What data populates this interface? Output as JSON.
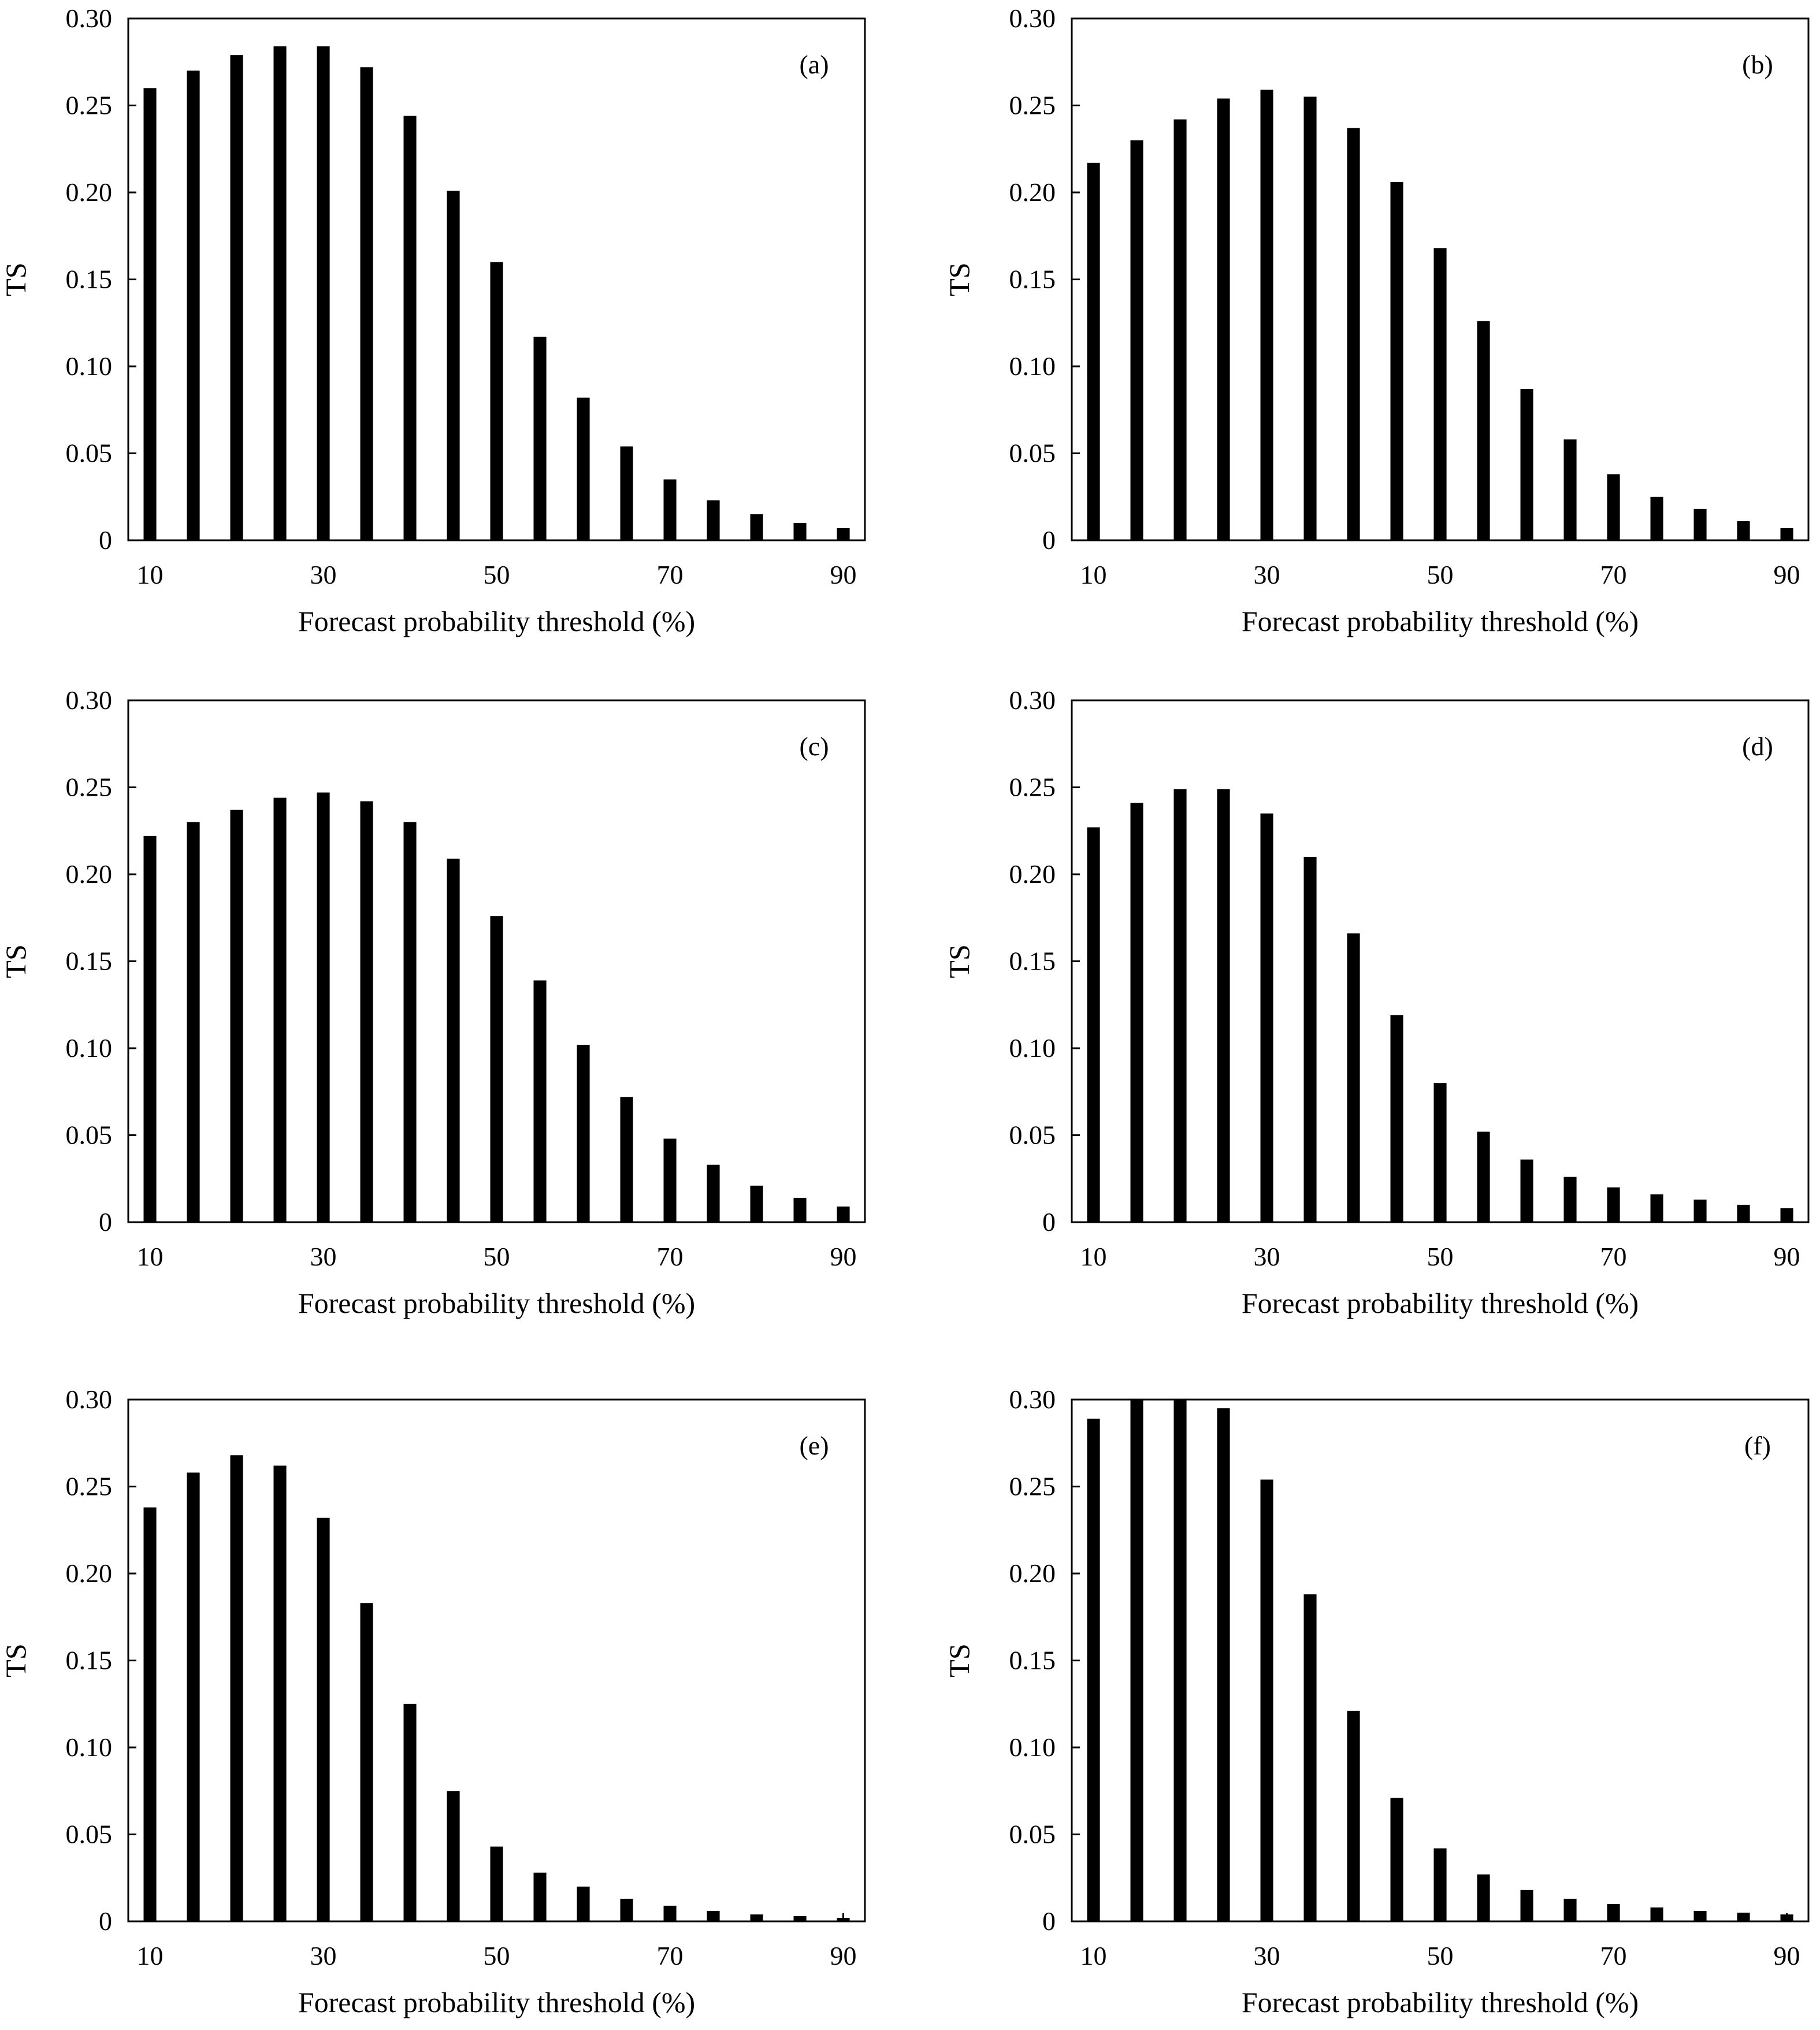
{
  "figure": {
    "bar_color": "#000000",
    "axis_color": "#000000",
    "background": "#ffffff"
  },
  "chart_data": [
    {
      "panel": "(a)",
      "type": "bar",
      "categories": [
        10,
        15,
        20,
        25,
        30,
        35,
        40,
        45,
        50,
        55,
        60,
        65,
        70,
        75,
        80,
        85,
        90
      ],
      "values": [
        0.26,
        0.27,
        0.279,
        0.284,
        0.284,
        0.272,
        0.244,
        0.201,
        0.16,
        0.117,
        0.082,
        0.054,
        0.035,
        0.023,
        0.015,
        0.01,
        0.007
      ],
      "xlabel": "Forecast probability threshold (%)",
      "ylabel": "TS",
      "ylim": [
        0,
        0.3
      ],
      "xlim": [
        7.5,
        92.5
      ],
      "xticks": [
        10,
        30,
        50,
        70,
        90
      ],
      "yticks": [
        0,
        0.05,
        0.1,
        0.15,
        0.2,
        0.25,
        0.3
      ],
      "ytick_labels": [
        "0",
        "0.05",
        "0.10",
        "0.15",
        "0.20",
        "0.25",
        "0.30"
      ]
    },
    {
      "panel": "(b)",
      "type": "bar",
      "categories": [
        10,
        15,
        20,
        25,
        30,
        35,
        40,
        45,
        50,
        55,
        60,
        65,
        70,
        75,
        80,
        85,
        90
      ],
      "values": [
        0.217,
        0.23,
        0.242,
        0.254,
        0.259,
        0.255,
        0.237,
        0.206,
        0.168,
        0.126,
        0.087,
        0.058,
        0.038,
        0.025,
        0.018,
        0.011,
        0.007
      ],
      "xlabel": "Forecast probability threshold (%)",
      "ylabel": "TS",
      "ylim": [
        0,
        0.3
      ],
      "xlim": [
        7.5,
        92.5
      ],
      "xticks": [
        10,
        30,
        50,
        70,
        90
      ],
      "yticks": [
        0,
        0.05,
        0.1,
        0.15,
        0.2,
        0.25,
        0.3
      ],
      "ytick_labels": [
        "0",
        "0.05",
        "0.10",
        "0.15",
        "0.20",
        "0.25",
        "0.30"
      ]
    },
    {
      "panel": "(c)",
      "type": "bar",
      "categories": [
        10,
        15,
        20,
        25,
        30,
        35,
        40,
        45,
        50,
        55,
        60,
        65,
        70,
        75,
        80,
        85,
        90
      ],
      "values": [
        0.222,
        0.23,
        0.237,
        0.244,
        0.247,
        0.242,
        0.23,
        0.209,
        0.176,
        0.139,
        0.102,
        0.072,
        0.048,
        0.033,
        0.021,
        0.014,
        0.009
      ],
      "xlabel": "Forecast probability threshold (%)",
      "ylabel": "TS",
      "ylim": [
        0,
        0.3
      ],
      "xlim": [
        7.5,
        92.5
      ],
      "xticks": [
        10,
        30,
        50,
        70,
        90
      ],
      "yticks": [
        0,
        0.05,
        0.1,
        0.15,
        0.2,
        0.25,
        0.3
      ],
      "ytick_labels": [
        "0",
        "0.05",
        "0.10",
        "0.15",
        "0.20",
        "0.25",
        "0.30"
      ]
    },
    {
      "panel": "(d)",
      "type": "bar",
      "categories": [
        10,
        15,
        20,
        25,
        30,
        35,
        40,
        45,
        50,
        55,
        60,
        65,
        70,
        75,
        80,
        85,
        90
      ],
      "values": [
        0.227,
        0.241,
        0.249,
        0.249,
        0.235,
        0.21,
        0.166,
        0.119,
        0.08,
        0.052,
        0.036,
        0.026,
        0.02,
        0.016,
        0.013,
        0.01,
        0.008
      ],
      "xlabel": "Forecast probability threshold (%)",
      "ylabel": "TS",
      "ylim": [
        0,
        0.3
      ],
      "xlim": [
        7.5,
        92.5
      ],
      "xticks": [
        10,
        30,
        50,
        70,
        90
      ],
      "yticks": [
        0,
        0.05,
        0.1,
        0.15,
        0.2,
        0.25,
        0.3
      ],
      "ytick_labels": [
        "0",
        "0.05",
        "0.10",
        "0.15",
        "0.20",
        "0.25",
        "0.30"
      ]
    },
    {
      "panel": "(e)",
      "type": "bar",
      "categories": [
        10,
        15,
        20,
        25,
        30,
        35,
        40,
        45,
        50,
        55,
        60,
        65,
        70,
        75,
        80,
        85,
        90
      ],
      "values": [
        0.238,
        0.258,
        0.268,
        0.262,
        0.232,
        0.183,
        0.125,
        0.075,
        0.043,
        0.028,
        0.02,
        0.013,
        0.009,
        0.006,
        0.004,
        0.003,
        0.002
      ],
      "xlabel": "Forecast probability threshold (%)",
      "ylabel": "TS",
      "ylim": [
        0,
        0.3
      ],
      "xlim": [
        7.5,
        92.5
      ],
      "xticks": [
        10,
        30,
        50,
        70,
        90
      ],
      "yticks": [
        0,
        0.05,
        0.1,
        0.15,
        0.2,
        0.25,
        0.3
      ],
      "ytick_labels": [
        "0",
        "0.05",
        "0.10",
        "0.15",
        "0.20",
        "0.25",
        "0.30"
      ]
    },
    {
      "panel": "(f)",
      "type": "bar",
      "categories": [
        10,
        15,
        20,
        25,
        30,
        35,
        40,
        45,
        50,
        55,
        60,
        65,
        70,
        75,
        80,
        85,
        90
      ],
      "values": [
        0.289,
        0.3,
        0.3,
        0.295,
        0.254,
        0.188,
        0.121,
        0.071,
        0.042,
        0.027,
        0.018,
        0.013,
        0.01,
        0.008,
        0.006,
        0.005,
        0.004
      ],
      "xlabel": "Forecast probability threshold (%)",
      "ylabel": "TS",
      "ylim": [
        0,
        0.3
      ],
      "xlim": [
        7.5,
        92.5
      ],
      "xticks": [
        10,
        30,
        50,
        70,
        90
      ],
      "yticks": [
        0,
        0.05,
        0.1,
        0.15,
        0.2,
        0.25,
        0.3
      ],
      "ytick_labels": [
        "0",
        "0.05",
        "0.10",
        "0.15",
        "0.20",
        "0.25",
        "0.30"
      ]
    }
  ]
}
